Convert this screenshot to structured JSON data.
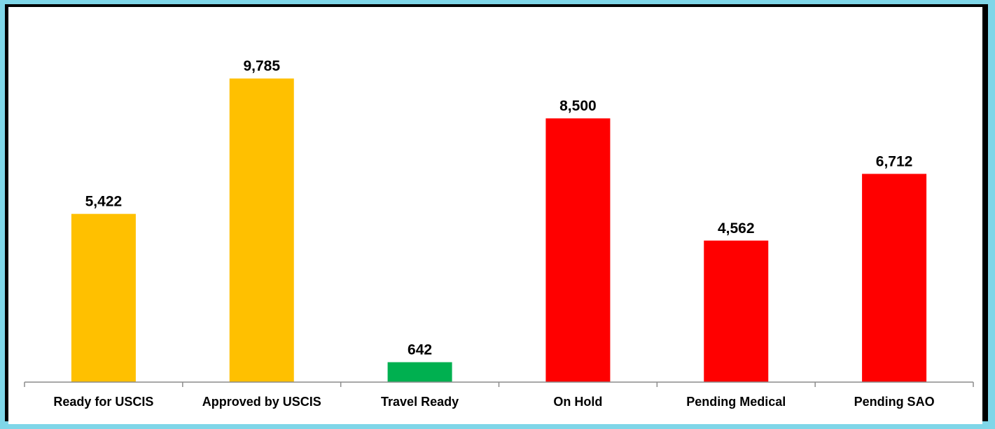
{
  "chart_data": {
    "type": "bar",
    "categories": [
      "Ready for USCIS",
      "Approved by USCIS",
      "Travel Ready",
      "On Hold",
      "Pending Medical",
      "Pending SAO"
    ],
    "values": [
      5422,
      9785,
      642,
      8500,
      4562,
      6712
    ],
    "value_labels": [
      "5,422",
      "9,785",
      "642",
      "8,500",
      "4,562",
      "6,712"
    ],
    "colors": [
      "#ffc000",
      "#ffc000",
      "#00b050",
      "#ff0000",
      "#ff0000",
      "#ff0000"
    ],
    "title": "",
    "xlabel": "",
    "ylabel": "",
    "ylim": [
      0,
      12000
    ],
    "grid": false,
    "legend": "none"
  }
}
